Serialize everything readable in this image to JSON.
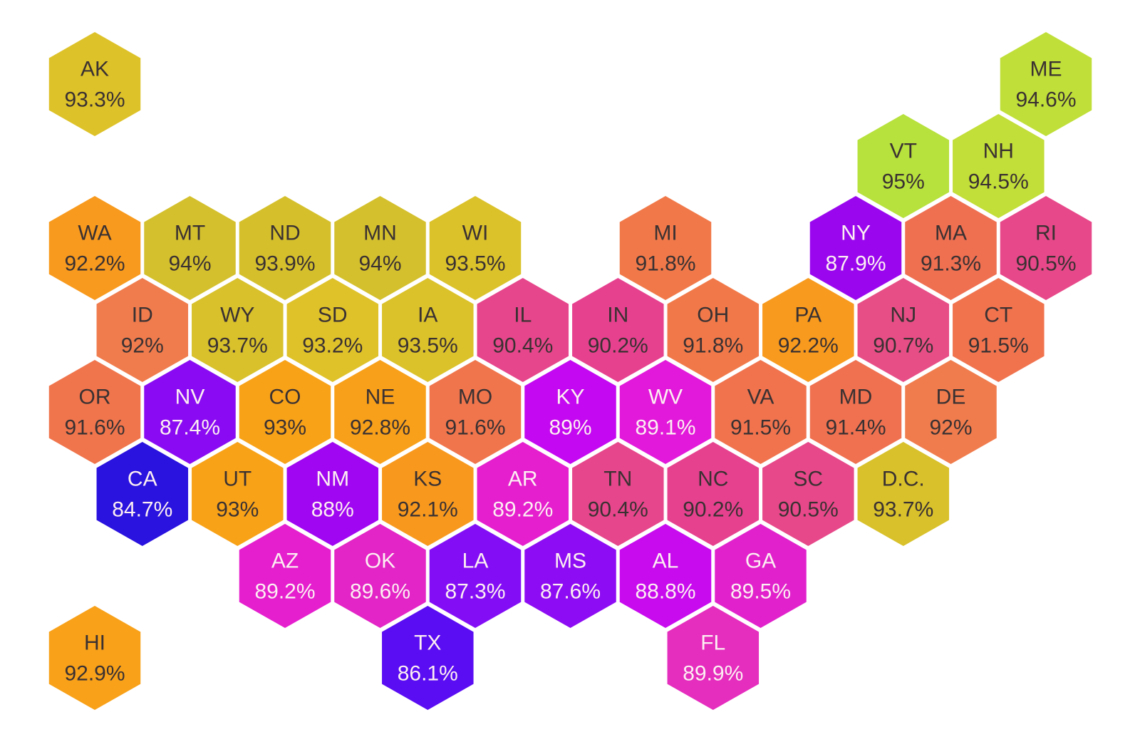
{
  "chart_data": {
    "type": "heatmap",
    "subtype": "us-state-hex-tile-cartogram",
    "title": "",
    "legend": "none",
    "grid": "off",
    "background": "#FFFFFF",
    "tile_stroke_color": "#FFFFFF",
    "value_format": "percent",
    "value_range": [
      84.7,
      95.0
    ],
    "text_colors": {
      "dark": "#3A3132",
      "light": "#FCEFF2"
    },
    "states": [
      {
        "abbr": "AK",
        "label": "93.3%",
        "value": 93.3,
        "row": 0,
        "col": 0,
        "color": "#DEC229",
        "text": "dark"
      },
      {
        "abbr": "ME",
        "label": "94.6%",
        "value": 94.6,
        "row": 0,
        "col": 20,
        "color": "#C0DF39",
        "text": "dark"
      },
      {
        "abbr": "VT",
        "label": "95%",
        "value": 95.0,
        "row": 1,
        "col": 17,
        "color": "#B7E13C",
        "text": "dark"
      },
      {
        "abbr": "NH",
        "label": "94.5%",
        "value": 94.5,
        "row": 1,
        "col": 19,
        "color": "#C2DE38",
        "text": "dark"
      },
      {
        "abbr": "WA",
        "label": "92.2%",
        "value": 92.2,
        "row": 2,
        "col": 0,
        "color": "#F89A1D",
        "text": "dark"
      },
      {
        "abbr": "MT",
        "label": "94%",
        "value": 94.0,
        "row": 2,
        "col": 2,
        "color": "#D4C02D",
        "text": "dark"
      },
      {
        "abbr": "ND",
        "label": "93.9%",
        "value": 93.9,
        "row": 2,
        "col": 4,
        "color": "#D5C02C",
        "text": "dark"
      },
      {
        "abbr": "MN",
        "label": "94%",
        "value": 94.0,
        "row": 2,
        "col": 6,
        "color": "#D4C02D",
        "text": "dark"
      },
      {
        "abbr": "WI",
        "label": "93.5%",
        "value": 93.5,
        "row": 2,
        "col": 8,
        "color": "#DBC22A",
        "text": "dark"
      },
      {
        "abbr": "MI",
        "label": "91.8%",
        "value": 91.8,
        "row": 2,
        "col": 12,
        "color": "#F17949",
        "text": "dark"
      },
      {
        "abbr": "NY",
        "label": "87.9%",
        "value": 87.9,
        "row": 2,
        "col": 16,
        "color": "#9A07EF",
        "text": "light"
      },
      {
        "abbr": "MA",
        "label": "91.3%",
        "value": 91.3,
        "row": 2,
        "col": 18,
        "color": "#EF6F51",
        "text": "dark"
      },
      {
        "abbr": "RI",
        "label": "90.5%",
        "value": 90.5,
        "row": 2,
        "col": 20,
        "color": "#E74889",
        "text": "dark"
      },
      {
        "abbr": "ID",
        "label": "92%",
        "value": 92.0,
        "row": 3,
        "col": 1,
        "color": "#F07C4D",
        "text": "dark"
      },
      {
        "abbr": "WY",
        "label": "93.7%",
        "value": 93.7,
        "row": 3,
        "col": 3,
        "color": "#D8C12B",
        "text": "dark"
      },
      {
        "abbr": "SD",
        "label": "93.2%",
        "value": 93.2,
        "row": 3,
        "col": 5,
        "color": "#DFC22A",
        "text": "dark"
      },
      {
        "abbr": "IA",
        "label": "93.5%",
        "value": 93.5,
        "row": 3,
        "col": 7,
        "color": "#DBC22A",
        "text": "dark"
      },
      {
        "abbr": "IL",
        "label": "90.4%",
        "value": 90.4,
        "row": 3,
        "col": 9,
        "color": "#E6468B",
        "text": "dark"
      },
      {
        "abbr": "IN",
        "label": "90.2%",
        "value": 90.2,
        "row": 3,
        "col": 11,
        "color": "#E6418F",
        "text": "dark"
      },
      {
        "abbr": "OH",
        "label": "91.8%",
        "value": 91.8,
        "row": 3,
        "col": 13,
        "color": "#F17949",
        "text": "dark"
      },
      {
        "abbr": "PA",
        "label": "92.2%",
        "value": 92.2,
        "row": 3,
        "col": 15,
        "color": "#F89A1D",
        "text": "dark"
      },
      {
        "abbr": "NJ",
        "label": "90.7%",
        "value": 90.7,
        "row": 3,
        "col": 17,
        "color": "#E74E86",
        "text": "dark"
      },
      {
        "abbr": "CT",
        "label": "91.5%",
        "value": 91.5,
        "row": 3,
        "col": 19,
        "color": "#F0734E",
        "text": "dark"
      },
      {
        "abbr": "OR",
        "label": "91.6%",
        "value": 91.6,
        "row": 4,
        "col": 0,
        "color": "#F0754C",
        "text": "dark"
      },
      {
        "abbr": "NV",
        "label": "87.4%",
        "value": 87.4,
        "row": 4,
        "col": 2,
        "color": "#8A0BF3",
        "text": "light"
      },
      {
        "abbr": "CO",
        "label": "93%",
        "value": 93.0,
        "row": 4,
        "col": 4,
        "color": "#F8A218",
        "text": "dark"
      },
      {
        "abbr": "NE",
        "label": "92.8%",
        "value": 92.8,
        "row": 4,
        "col": 6,
        "color": "#F8A019",
        "text": "dark"
      },
      {
        "abbr": "MO",
        "label": "91.6%",
        "value": 91.6,
        "row": 4,
        "col": 8,
        "color": "#F0754C",
        "text": "dark"
      },
      {
        "abbr": "KY",
        "label": "89%",
        "value": 89.0,
        "row": 4,
        "col": 10,
        "color": "#C408F1",
        "text": "light"
      },
      {
        "abbr": "WV",
        "label": "89.1%",
        "value": 89.1,
        "row": 4,
        "col": 12,
        "color": "#E219DA",
        "text": "light"
      },
      {
        "abbr": "VA",
        "label": "91.5%",
        "value": 91.5,
        "row": 4,
        "col": 14,
        "color": "#F0734E",
        "text": "dark"
      },
      {
        "abbr": "MD",
        "label": "91.4%",
        "value": 91.4,
        "row": 4,
        "col": 16,
        "color": "#EF7150",
        "text": "dark"
      },
      {
        "abbr": "DE",
        "label": "92%",
        "value": 92.0,
        "row": 4,
        "col": 18,
        "color": "#F07C4D",
        "text": "dark"
      },
      {
        "abbr": "CA",
        "label": "84.7%",
        "value": 84.7,
        "row": 5,
        "col": 1,
        "color": "#2A12DF",
        "text": "light"
      },
      {
        "abbr": "UT",
        "label": "93%",
        "value": 93.0,
        "row": 5,
        "col": 3,
        "color": "#F8A218",
        "text": "dark"
      },
      {
        "abbr": "NM",
        "label": "88%",
        "value": 88.0,
        "row": 5,
        "col": 5,
        "color": "#A006F1",
        "text": "light"
      },
      {
        "abbr": "KS",
        "label": "92.1%",
        "value": 92.1,
        "row": 5,
        "col": 7,
        "color": "#F8991E",
        "text": "dark"
      },
      {
        "abbr": "AR",
        "label": "89.2%",
        "value": 89.2,
        "row": 5,
        "col": 9,
        "color": "#E51FCE",
        "text": "light"
      },
      {
        "abbr": "TN",
        "label": "90.4%",
        "value": 90.4,
        "row": 5,
        "col": 11,
        "color": "#E6468B",
        "text": "dark"
      },
      {
        "abbr": "NC",
        "label": "90.2%",
        "value": 90.2,
        "row": 5,
        "col": 13,
        "color": "#E6418F",
        "text": "dark"
      },
      {
        "abbr": "SC",
        "label": "90.5%",
        "value": 90.5,
        "row": 5,
        "col": 15,
        "color": "#E74889",
        "text": "dark"
      },
      {
        "abbr": "D.C.",
        "label": "93.7%",
        "value": 93.7,
        "row": 5,
        "col": 17,
        "color": "#D8C12B",
        "text": "dark"
      },
      {
        "abbr": "AZ",
        "label": "89.2%",
        "value": 89.2,
        "row": 6,
        "col": 4,
        "color": "#E51FCE",
        "text": "light"
      },
      {
        "abbr": "OK",
        "label": "89.6%",
        "value": 89.6,
        "row": 6,
        "col": 6,
        "color": "#E324C6",
        "text": "light"
      },
      {
        "abbr": "LA",
        "label": "87.3%",
        "value": 87.3,
        "row": 6,
        "col": 8,
        "color": "#830EF6",
        "text": "light"
      },
      {
        "abbr": "MS",
        "label": "87.6%",
        "value": 87.6,
        "row": 6,
        "col": 10,
        "color": "#8E0CF3",
        "text": "light"
      },
      {
        "abbr": "AL",
        "label": "88.8%",
        "value": 88.8,
        "row": 6,
        "col": 12,
        "color": "#C80AEF",
        "text": "light"
      },
      {
        "abbr": "GA",
        "label": "89.5%",
        "value": 89.5,
        "row": 6,
        "col": 14,
        "color": "#E122CC",
        "text": "light"
      },
      {
        "abbr": "TX",
        "label": "86.1%",
        "value": 86.1,
        "row": 7,
        "col": 7,
        "color": "#5A0CF3",
        "text": "light"
      },
      {
        "abbr": "FL",
        "label": "89.9%",
        "value": 89.9,
        "row": 7,
        "col": 13,
        "color": "#E52DBE",
        "text": "light"
      },
      {
        "abbr": "HI",
        "label": "92.9%",
        "value": 92.9,
        "row": 7,
        "col": 0,
        "color": "#F8A119",
        "text": "dark"
      }
    ]
  }
}
